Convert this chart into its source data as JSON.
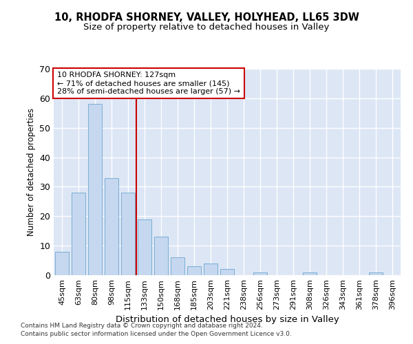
{
  "title1": "10, RHODFA SHORNEY, VALLEY, HOLYHEAD, LL65 3DW",
  "title2": "Size of property relative to detached houses in Valley",
  "xlabel": "Distribution of detached houses by size in Valley",
  "ylabel": "Number of detached properties",
  "categories": [
    "45sqm",
    "63sqm",
    "80sqm",
    "98sqm",
    "115sqm",
    "133sqm",
    "150sqm",
    "168sqm",
    "185sqm",
    "203sqm",
    "221sqm",
    "238sqm",
    "256sqm",
    "273sqm",
    "291sqm",
    "308sqm",
    "326sqm",
    "343sqm",
    "361sqm",
    "378sqm",
    "396sqm"
  ],
  "values": [
    8,
    28,
    58,
    33,
    28,
    19,
    13,
    6,
    3,
    4,
    2,
    0,
    1,
    0,
    0,
    1,
    0,
    0,
    0,
    1,
    0
  ],
  "bar_color": "#c5d8ef",
  "bar_edge_color": "#7aadd4",
  "red_line_x": 4.5,
  "annotation_line1": "10 RHODFA SHORNEY: 127sqm",
  "annotation_line2": "← 71% of detached houses are smaller (145)",
  "annotation_line3": "28% of semi-detached houses are larger (57) →",
  "annotation_box_color": "white",
  "annotation_box_edge_color": "#cc0000",
  "footer1": "Contains HM Land Registry data © Crown copyright and database right 2024.",
  "footer2": "Contains public sector information licensed under the Open Government Licence v3.0.",
  "ylim": [
    0,
    70
  ],
  "yticks": [
    0,
    10,
    20,
    30,
    40,
    50,
    60,
    70
  ],
  "background_color": "#dce6f5",
  "grid_color": "white",
  "title1_fontsize": 10.5,
  "title2_fontsize": 9.5,
  "xlabel_fontsize": 9.5,
  "ylabel_fontsize": 8.5,
  "tick_fontsize": 8,
  "annotation_fontsize": 8,
  "footer_fontsize": 6.5
}
